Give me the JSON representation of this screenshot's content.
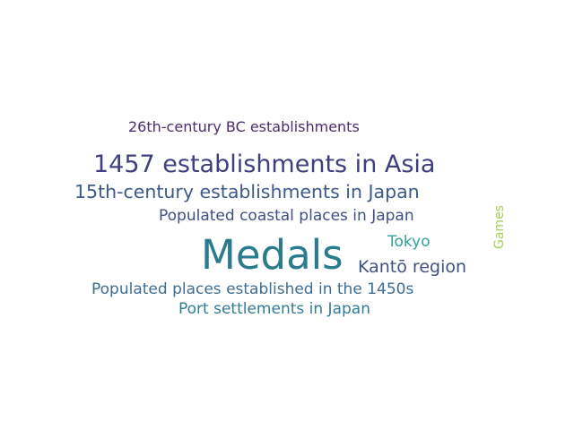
{
  "words": [
    {
      "text": "26th-century BC establishments",
      "color": "#4d2c6e"
    },
    {
      "text": "1457 establishments in Asia",
      "color": "#3f3f7f"
    },
    {
      "text": "15th-century establishments in Japan",
      "color": "#3d5a88"
    },
    {
      "text": "Populated coastal places in Japan",
      "color": "#3f4f86"
    },
    {
      "text": "Games",
      "color": "#a6d055"
    },
    {
      "text": "Tokyo",
      "color": "#2fa39a"
    },
    {
      "text": "Medals",
      "color": "#2a7b8e"
    },
    {
      "text": "Kantō region",
      "color": "#3f5283"
    },
    {
      "text": "Populated places established in the 1450s",
      "color": "#3e6e92"
    },
    {
      "text": "Port settlements in Japan",
      "color": "#337d94"
    }
  ]
}
